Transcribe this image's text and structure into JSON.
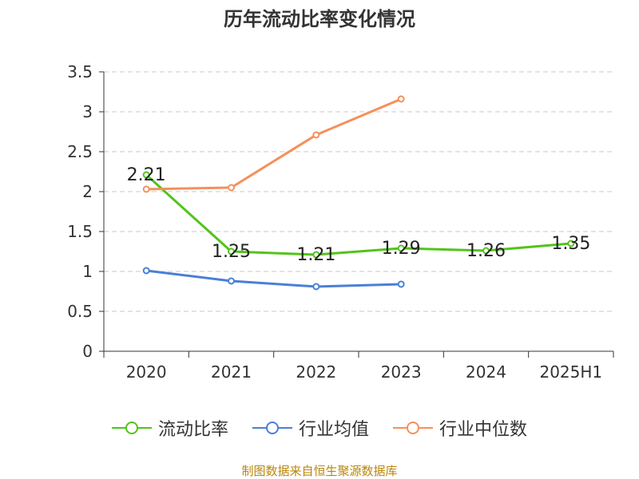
{
  "chart_data": {
    "type": "line",
    "title": "历年流动比率变化情况",
    "categories": [
      "2020",
      "2021",
      "2022",
      "2023",
      "2024",
      "2025H1"
    ],
    "ylim": [
      0,
      3.5
    ],
    "yticks": [
      "0",
      "0.5",
      "1",
      "1.5",
      "2",
      "2.5",
      "3",
      "3.5"
    ],
    "grid": true,
    "legend_position": "bottom",
    "series": [
      {
        "name": "流动比率",
        "color": "#52c41a",
        "values": [
          2.21,
          1.25,
          1.21,
          1.29,
          1.26,
          1.35
        ],
        "labels": [
          "2.21",
          "1.25",
          "1.21",
          "1.29",
          "1.26",
          "1.35"
        ]
      },
      {
        "name": "行业均值",
        "color": "#4a7fd8",
        "values": [
          1.01,
          0.88,
          0.81,
          0.84,
          null,
          null
        ]
      },
      {
        "name": "行业中位数",
        "color": "#f5905a",
        "values": [
          2.03,
          2.05,
          2.71,
          3.16,
          null,
          null
        ]
      }
    ]
  },
  "source_note": "制图数据来自恒生聚源数据库"
}
